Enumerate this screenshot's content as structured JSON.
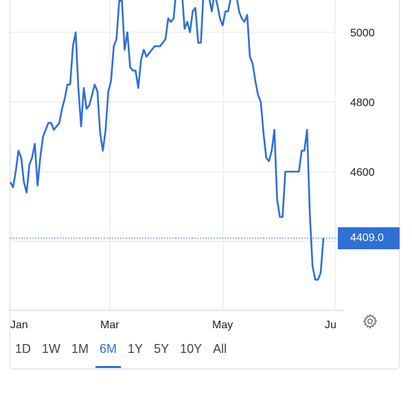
{
  "chart_data": {
    "type": "line",
    "title": "",
    "xlabel": "",
    "ylabel": "",
    "ylim": [
      4240,
      5130
    ],
    "x_ticks": [
      "Jan",
      "Mar",
      "May",
      "Ju"
    ],
    "y_ticks": [
      5000,
      4800,
      4600
    ],
    "last_price_label": "4409.0",
    "last_price": 4409.0,
    "grid": true,
    "line_color": "#2f6fd6",
    "series": [
      {
        "values": [
          4570,
          4555,
          4600,
          4660,
          4640,
          4570,
          4540,
          4620,
          4640,
          4680,
          4560,
          4640,
          4700,
          4720,
          4740,
          4740,
          4720,
          4730,
          4740,
          4780,
          4810,
          4850,
          4850,
          4960,
          5000,
          4840,
          4730,
          4840,
          4780,
          4790,
          4820,
          4850,
          4830,
          4710,
          4660,
          4720,
          4830,
          4860,
          4960,
          4980,
          5090,
          5090,
          4950,
          5000,
          4900,
          4890,
          4890,
          4840,
          4920,
          4950,
          4930,
          4940,
          4950,
          4960,
          4960,
          4960,
          4970,
          4980,
          5040,
          5030,
          5040,
          5130,
          5140,
          5120,
          5010,
          5030,
          5000,
          5060,
          5070,
          4970,
          4970,
          5120,
          5140,
          5100,
          5060,
          5110,
          5080,
          5040,
          5020,
          5060,
          5060,
          5100,
          5120,
          5110,
          5060,
          5040,
          5030,
          5050,
          4930,
          4910,
          4860,
          4820,
          4800,
          4710,
          4640,
          4630,
          4660,
          4720,
          4520,
          4470,
          4470,
          4600,
          4600,
          4600,
          4600,
          4600,
          4600,
          4660,
          4660,
          4720,
          4480,
          4330,
          4290,
          4290,
          4310,
          4409
        ]
      }
    ]
  },
  "time_ranges": [
    "1D",
    "1W",
    "1M",
    "6M",
    "1Y",
    "5Y",
    "10Y",
    "All"
  ],
  "active_range": "6M",
  "settings_icon": "gear-icon",
  "colors": {
    "accent": "#2f6fd6",
    "grid": "#e6e6e6",
    "price_line": "#2f6fd6"
  }
}
